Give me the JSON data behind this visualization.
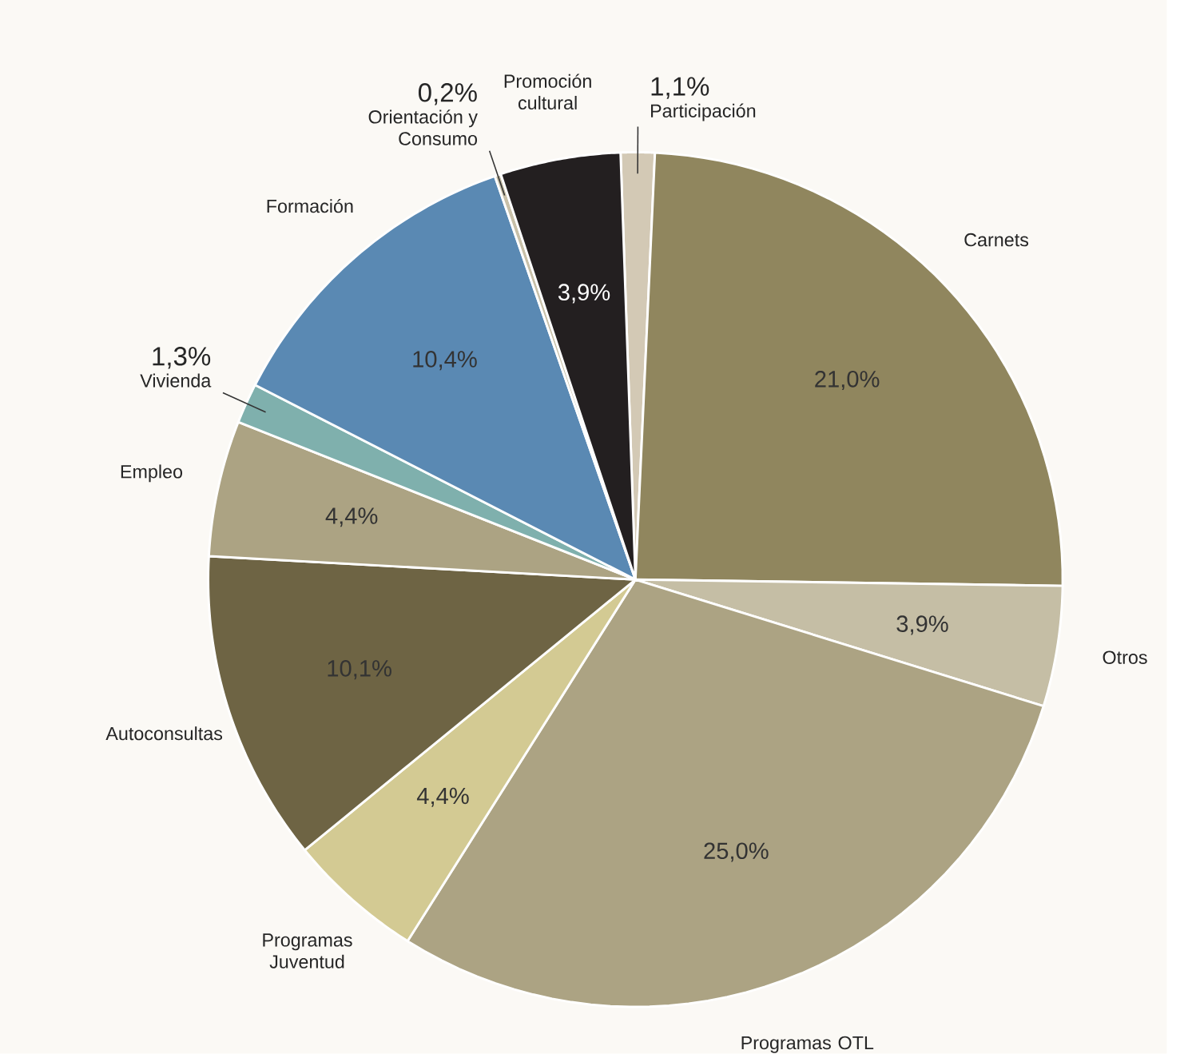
{
  "chart_data": {
    "type": "pie",
    "categories": [
      "Participación",
      "Carnets",
      "Otros",
      "Programas OTL",
      "Programas Juventud",
      "Autoconsultas",
      "Empleo",
      "Vivienda",
      "Formación",
      "Orientación y Consumo",
      "Promoción cultural"
    ],
    "values": [
      1.1,
      21.0,
      3.9,
      25.0,
      4.4,
      10.1,
      4.4,
      1.3,
      10.4,
      0.2,
      3.9
    ],
    "value_labels": [
      "1,1%",
      "21,0%",
      "3,9%",
      "25,0%",
      "4,4%",
      "10,1%",
      "4,4%",
      "1,3%",
      "10,4%",
      "0,2%",
      "3,9%"
    ],
    "colors": [
      "#d3c9b5",
      "#90865e",
      "#c5bea5",
      "#aca383",
      "#d3ca93",
      "#6e6444",
      "#aca383",
      "#7fb0ad",
      "#5a89b3",
      "#c8c0a8",
      "#231f20"
    ]
  }
}
